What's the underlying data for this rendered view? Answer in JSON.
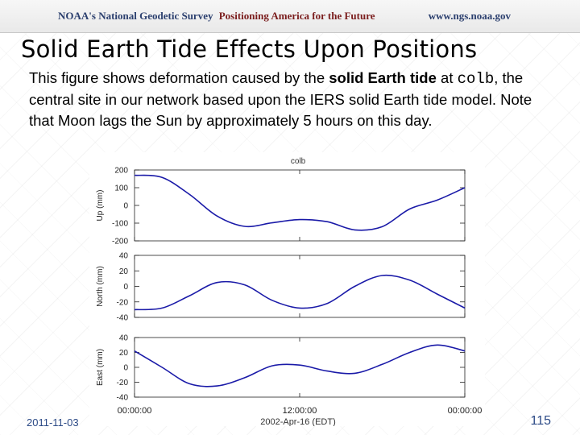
{
  "header": {
    "banner_left": "NOAA's National Geodetic Survey",
    "banner_tagline": "Positioning America for the Future",
    "banner_right": "www.ngs.noaa.gov"
  },
  "slide": {
    "title": "Solid Earth Tide Effects Upon Positions",
    "text_1": "This figure shows deformation caused by the ",
    "text_bold": "solid Earth tide",
    "text_2": " at ",
    "text_mono": "colb",
    "text_3": ", the central site in our network based upon the IERS solid Earth tide model. Note that Moon lags the Sun by approximately 5 hours on this day."
  },
  "footer": {
    "date": "2011-11-03",
    "page": "115"
  },
  "chart_data": [
    {
      "type": "line",
      "title": "colb",
      "ylabel": "Up (mm)",
      "ylim": [
        -200,
        200
      ],
      "yticks": [
        "200",
        "100",
        "0",
        "-100",
        "-200"
      ],
      "ytick_values": [
        200,
        100,
        0,
        -100,
        -200
      ],
      "x": [
        0,
        2,
        4,
        6,
        8,
        10,
        12,
        14,
        16,
        18,
        20,
        22,
        24
      ],
      "values": [
        170,
        158,
        62,
        -60,
        -118,
        -98,
        -80,
        -92,
        -138,
        -120,
        -20,
        30,
        100
      ],
      "color": "#1a1aa8"
    },
    {
      "type": "line",
      "title": "",
      "ylabel": "North (mm)",
      "ylim": [
        -40,
        40
      ],
      "yticks": [
        "40",
        "20",
        "0",
        "-20",
        "-40"
      ],
      "ytick_values": [
        40,
        20,
        0,
        -20,
        -40
      ],
      "x": [
        0,
        2,
        4,
        6,
        8,
        10,
        12,
        14,
        16,
        18,
        20,
        22,
        24
      ],
      "values": [
        -30,
        -28,
        -12,
        5,
        2,
        -18,
        -28,
        -22,
        0,
        14,
        8,
        -10,
        -28
      ],
      "color": "#1a1aa8"
    },
    {
      "type": "line",
      "title": "",
      "ylabel": "East (mm)",
      "ylim": [
        -40,
        40
      ],
      "yticks": [
        "40",
        "20",
        "0",
        "-20",
        "-40"
      ],
      "ytick_values": [
        40,
        20,
        0,
        -20,
        -40
      ],
      "x": [
        0,
        2,
        4,
        6,
        8,
        10,
        12,
        14,
        16,
        18,
        20,
        22,
        24
      ],
      "values": [
        22,
        0,
        -22,
        -25,
        -14,
        2,
        3,
        -5,
        -8,
        4,
        20,
        30,
        22
      ],
      "color": "#1a1aa8"
    }
  ],
  "chart_axis": {
    "xlim": [
      0,
      24
    ],
    "xtick_labels": [
      "00:00:00",
      "12:00:00",
      "00:00:00"
    ],
    "xtick_values": [
      0,
      12,
      24
    ],
    "xlabel": "2002-Apr-16 (EDT)"
  }
}
